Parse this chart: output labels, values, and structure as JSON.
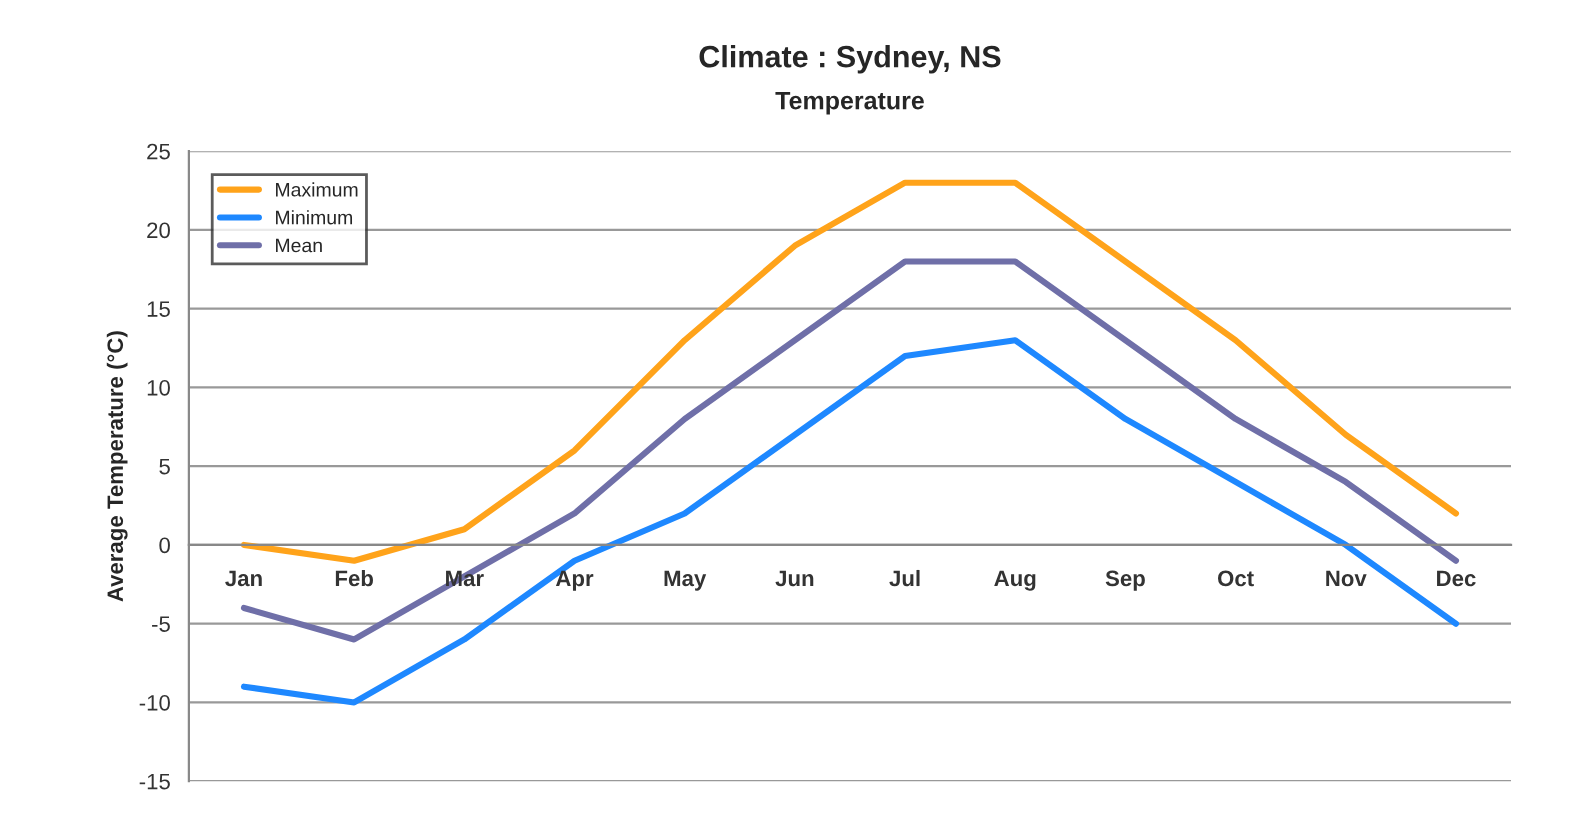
{
  "chart_data": {
    "type": "line",
    "title": "Climate : Sydney, NS",
    "subtitle": "Temperature",
    "ylabel": "Average Temperature (°C)",
    "categories": [
      "Jan",
      "Feb",
      "Mar",
      "Apr",
      "May",
      "Jun",
      "Jul",
      "Aug",
      "Sep",
      "Oct",
      "Nov",
      "Dec"
    ],
    "series": [
      {
        "name": "Maximum",
        "color": "#ffa31a",
        "values": [
          0,
          -1,
          1,
          6,
          13,
          19,
          23,
          23,
          18,
          13,
          7,
          2
        ]
      },
      {
        "name": "Minimum",
        "color": "#1e88ff",
        "values": [
          -9,
          -10,
          -6,
          -1,
          2,
          7,
          12,
          13,
          8,
          4,
          0,
          -5
        ]
      },
      {
        "name": "Mean",
        "color": "#6f6fa8",
        "values": [
          -4,
          -6,
          -2,
          2,
          8,
          13,
          18,
          18,
          13,
          8,
          4,
          -1
        ]
      }
    ],
    "ylim": [
      -15,
      25
    ],
    "yticks": [
      -15,
      -10,
      -5,
      0,
      5,
      10,
      15,
      20,
      25
    ],
    "grid": "y",
    "legend": "top left",
    "marker": "none",
    "line_style": "solid"
  }
}
